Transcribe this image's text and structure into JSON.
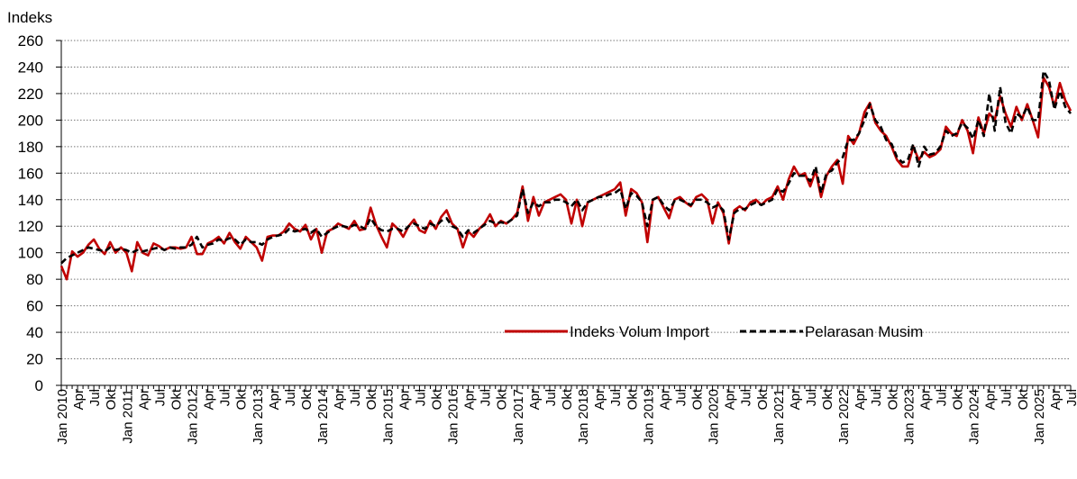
{
  "chart_data": {
    "type": "line",
    "y_label": "Indeks",
    "categories": [
      "Jan 2010",
      null,
      null,
      "Apr",
      null,
      null,
      "Jul",
      null,
      null,
      "Okt",
      null,
      null,
      "Jan 2011",
      null,
      null,
      "Apr",
      null,
      null,
      "Jul",
      null,
      null,
      "Okt",
      null,
      null,
      "Jan 2012",
      null,
      null,
      "Apr",
      null,
      null,
      "Jul",
      null,
      null,
      "Okt",
      null,
      null,
      "Jan 2013",
      null,
      null,
      "Apr",
      null,
      null,
      "Jul",
      null,
      null,
      "Okt",
      null,
      null,
      "Jan 2014",
      null,
      null,
      "Apr",
      null,
      null,
      "Jul",
      null,
      null,
      "Okt",
      null,
      null,
      "Jan 2015",
      null,
      null,
      "Apr",
      null,
      null,
      "Jul",
      null,
      null,
      "Okt",
      null,
      null,
      "Jan 2016",
      null,
      null,
      "Apr",
      null,
      null,
      "Jul",
      null,
      null,
      "Okt",
      null,
      null,
      "Jan 2017",
      null,
      null,
      "Apr",
      null,
      null,
      "Jul",
      null,
      null,
      "Okt",
      null,
      null,
      "Jan 2018",
      null,
      null,
      "Apr",
      null,
      null,
      "Jul",
      null,
      null,
      "Okt",
      null,
      null,
      "Jan 2019",
      null,
      null,
      "Apr",
      null,
      null,
      "Jul",
      null,
      null,
      "Okt",
      null,
      null,
      "Jan 2020",
      null,
      null,
      "Apr",
      null,
      null,
      "Jul",
      null,
      null,
      "Okt",
      null,
      null,
      "Jan 2021",
      null,
      null,
      "Apr",
      null,
      null,
      "Jul",
      null,
      null,
      "Okt",
      null,
      null,
      "Jan 2022",
      null,
      null,
      "Apr",
      null,
      null,
      "Jul",
      null,
      null,
      "Okt",
      null,
      null,
      "Jan 2023",
      null,
      null,
      "Apr",
      null,
      null,
      "Jul",
      null,
      null,
      "Okt",
      null,
      null,
      "Jan 2024",
      null,
      null,
      "Apr",
      null,
      null,
      "Jul",
      null,
      null,
      "Okt",
      null,
      null,
      "Jan 2025",
      null,
      null,
      "Apr",
      null,
      null,
      "Jul"
    ],
    "series": [
      {
        "name": "Indeks Volum Import",
        "color": "#c00000",
        "dash": false,
        "values": [
          90,
          80,
          101,
          97,
          100,
          106,
          110,
          103,
          99,
          108,
          100,
          104,
          100,
          86,
          108,
          100,
          98,
          107,
          105,
          102,
          104,
          104,
          103,
          104,
          112,
          99,
          99,
          107,
          109,
          112,
          107,
          115,
          108,
          103,
          112,
          108,
          104,
          94,
          112,
          113,
          113,
          116,
          122,
          118,
          116,
          121,
          110,
          118,
          100,
          116,
          118,
          122,
          120,
          118,
          124,
          117,
          118,
          134,
          121,
          112,
          104,
          122,
          118,
          112,
          120,
          125,
          117,
          115,
          124,
          118,
          127,
          132,
          122,
          118,
          104,
          116,
          112,
          118,
          122,
          129,
          120,
          124,
          122,
          125,
          130,
          150,
          124,
          142,
          128,
          138,
          140,
          142,
          144,
          140,
          122,
          140,
          120,
          138,
          140,
          142,
          144,
          146,
          148,
          153,
          128,
          148,
          145,
          138,
          108,
          140,
          142,
          134,
          126,
          140,
          142,
          138,
          135,
          142,
          144,
          140,
          122,
          138,
          130,
          107,
          132,
          135,
          132,
          138,
          140,
          136,
          140,
          142,
          150,
          140,
          155,
          165,
          158,
          160,
          150,
          162,
          142,
          158,
          165,
          170,
          152,
          188,
          182,
          190,
          206,
          213,
          198,
          192,
          188,
          180,
          170,
          165,
          165,
          180,
          170,
          176,
          172,
          174,
          178,
          195,
          190,
          188,
          200,
          192,
          175,
          202,
          190,
          205,
          200,
          218,
          205,
          195,
          210,
          200,
          212,
          200,
          187,
          232,
          225,
          210,
          228,
          215,
          207
        ]
      },
      {
        "name": "Pelarasan Musim",
        "color": "#000000",
        "dash": true,
        "values": [
          92,
          96,
          98,
          100,
          102,
          104,
          103,
          102,
          101,
          104,
          102,
          103,
          102,
          100,
          102,
          101,
          102,
          103,
          104,
          102,
          104,
          103,
          104,
          104,
          106,
          112,
          104,
          106,
          107,
          110,
          109,
          111,
          110,
          106,
          110,
          108,
          108,
          106,
          110,
          112,
          113,
          114,
          118,
          116,
          117,
          118,
          115,
          118,
          112,
          115,
          118,
          120,
          120,
          119,
          121,
          120,
          118,
          126,
          120,
          117,
          116,
          118,
          118,
          116,
          120,
          122,
          120,
          118,
          122,
          120,
          124,
          126,
          120,
          118,
          112,
          117,
          115,
          118,
          121,
          124,
          122,
          123,
          122,
          125,
          128,
          148,
          130,
          138,
          135,
          138,
          138,
          140,
          140,
          138,
          135,
          140,
          132,
          138,
          140,
          142,
          142,
          144,
          145,
          148,
          133,
          145,
          143,
          138,
          120,
          140,
          142,
          136,
          132,
          139,
          140,
          138,
          136,
          140,
          140,
          138,
          134,
          136,
          132,
          110,
          130,
          133,
          133,
          136,
          138,
          136,
          138,
          140,
          148,
          146,
          152,
          160,
          158,
          158,
          154,
          165,
          145,
          160,
          162,
          168,
          172,
          185,
          185,
          190,
          200,
          212,
          200,
          195,
          185,
          182,
          172,
          168,
          170,
          182,
          165,
          180,
          174,
          175,
          180,
          192,
          188,
          190,
          198,
          194,
          186,
          200,
          188,
          220,
          192,
          225,
          198,
          190,
          205,
          202,
          210,
          200,
          200,
          237,
          230,
          208,
          222,
          210,
          205
        ]
      }
    ],
    "ylim": [
      0,
      260
    ],
    "yticks": [
      0,
      20,
      40,
      60,
      80,
      100,
      120,
      140,
      160,
      180,
      200,
      220,
      240,
      260
    ],
    "grid": true,
    "legend": "bottom-right"
  }
}
